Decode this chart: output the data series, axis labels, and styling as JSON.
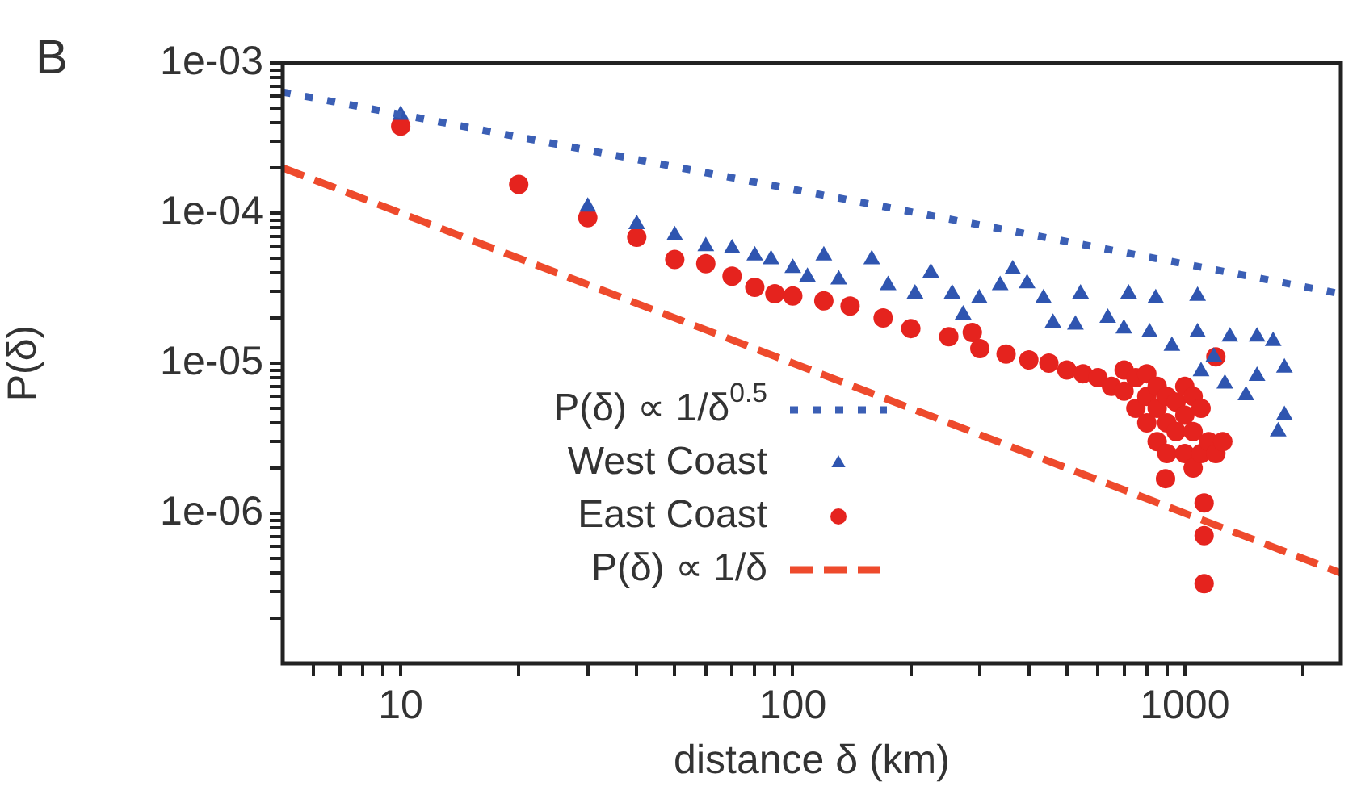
{
  "chart_data": {
    "type": "scatter",
    "title": "B",
    "xlabel": "distance δ (km)",
    "ylabel": "P(δ)",
    "log": "xy",
    "grid": false,
    "legend": "bottom left",
    "xlim": [
      5,
      2500
    ],
    "ylim": [
      1e-07,
      0.001
    ],
    "xticks": [
      {
        "value": 6,
        "label": null
      },
      {
        "value": 7,
        "label": null
      },
      {
        "value": 8,
        "label": null
      },
      {
        "value": 9,
        "label": null
      },
      10,
      {
        "value": 20,
        "label": null
      },
      {
        "value": 30,
        "label": null
      },
      {
        "value": 40,
        "label": null
      },
      {
        "value": 50,
        "label": null
      },
      {
        "value": 60,
        "label": null
      },
      {
        "value": 70,
        "label": null
      },
      {
        "value": 80,
        "label": null
      },
      {
        "value": 90,
        "label": null
      },
      100,
      {
        "value": 200,
        "label": null
      },
      {
        "value": 300,
        "label": null
      },
      {
        "value": 400,
        "label": null
      },
      {
        "value": 500,
        "label": null
      },
      {
        "value": 600,
        "label": null
      },
      {
        "value": 700,
        "label": null
      },
      {
        "value": 800,
        "label": null
      },
      {
        "value": 900,
        "label": null
      },
      1000,
      {
        "value": 2000,
        "label": null
      }
    ],
    "yticks": [
      {
        "value": 2e-07,
        "label": null
      },
      {
        "value": 3e-07,
        "label": null
      },
      {
        "value": 4e-07,
        "label": null
      },
      {
        "value": 5e-07,
        "label": null
      },
      {
        "value": 6e-07,
        "label": null
      },
      {
        "value": 7e-07,
        "label": null
      },
      {
        "value": 8e-07,
        "label": null
      },
      {
        "value": 9e-07,
        "label": null
      },
      {
        "value": 1e-06,
        "label": "1e-06"
      },
      {
        "value": 2e-06,
        "label": null
      },
      {
        "value": 3e-06,
        "label": null
      },
      {
        "value": 4e-06,
        "label": null
      },
      {
        "value": 5e-06,
        "label": null
      },
      {
        "value": 6e-06,
        "label": null
      },
      {
        "value": 7e-06,
        "label": null
      },
      {
        "value": 8e-06,
        "label": null
      },
      {
        "value": 9e-06,
        "label": null
      },
      {
        "value": 1e-05,
        "label": "1e-05"
      },
      {
        "value": 2e-05,
        "label": null
      },
      {
        "value": 3e-05,
        "label": null
      },
      {
        "value": 4e-05,
        "label": null
      },
      {
        "value": 5e-05,
        "label": null
      },
      {
        "value": 6e-05,
        "label": null
      },
      {
        "value": 7e-05,
        "label": null
      },
      {
        "value": 8e-05,
        "label": null
      },
      {
        "value": 9e-05,
        "label": null
      },
      {
        "value": 0.0001,
        "label": "1e-04"
      },
      {
        "value": 0.0002,
        "label": null
      },
      {
        "value": 0.0003,
        "label": null
      },
      {
        "value": 0.0004,
        "label": null
      },
      {
        "value": 0.0005,
        "label": null
      },
      {
        "value": 0.0006,
        "label": null
      },
      {
        "value": 0.0007,
        "label": null
      },
      {
        "value": 0.0008,
        "label": null
      },
      {
        "value": 0.0009,
        "label": null
      },
      {
        "value": 0.001,
        "label": "1e-03"
      }
    ],
    "series": [
      {
        "name": "P(δ) ∝ 1/δ$^{0.5}$",
        "type": "line",
        "line_style": "dotted",
        "marker": "none",
        "color": "#3b5fb5",
        "x": [
          5,
          2500
        ],
        "values": [
          0.00064,
          2.9e-05
        ]
      },
      {
        "name": "West Coast",
        "marker": "triangle",
        "color": "#2f55b0",
        "x": [
          10,
          30,
          40,
          50,
          60,
          70,
          80,
          88,
          100,
          109,
          120,
          131,
          159,
          175,
          205,
          225,
          255,
          272,
          299,
          338,
          364,
          396,
          436,
          461,
          526,
          542,
          636,
          699,
          719,
          813,
          843,
          927,
          1078,
          1078,
          1100,
          1186,
          1265,
          1303,
          1432,
          1528,
          1528,
          1680,
          1730,
          1795,
          1795
        ],
        "values": [
          0.00045,
          0.00011,
          8.4e-05,
          7.1e-05,
          6e-05,
          5.8e-05,
          5.2e-05,
          4.9e-05,
          4.3e-05,
          3.75e-05,
          5.2e-05,
          3.6e-05,
          4.9e-05,
          3.3e-05,
          2.9e-05,
          4e-05,
          2.9e-05,
          2.1e-05,
          2.7e-05,
          3.3e-05,
          4.2e-05,
          3.4e-05,
          2.7e-05,
          1.85e-05,
          1.8e-05,
          2.9e-05,
          2e-05,
          1.7e-05,
          2.9e-05,
          1.6e-05,
          2.7e-05,
          1.3e-05,
          2.8e-05,
          1.6e-05,
          8.8e-06,
          1.1e-05,
          7.3e-06,
          1.5e-05,
          6.1e-06,
          1.5e-05,
          8.2e-06,
          1.4e-05,
          3.5e-06,
          9.3e-06,
          4.5e-06
        ]
      },
      {
        "name": "East Coast",
        "marker": "circle",
        "color": "#e5231e",
        "x": [
          10,
          20,
          30,
          40,
          50,
          60,
          70,
          80,
          90,
          100,
          120,
          140,
          170,
          200,
          250,
          287,
          300,
          350,
          400,
          450,
          500,
          550,
          600,
          650,
          700,
          700,
          750,
          750,
          800,
          800,
          800,
          850,
          850,
          850,
          893,
          900,
          900,
          900,
          950,
          950,
          1000,
          1000,
          1000,
          1050,
          1050,
          1050,
          1100,
          1100,
          1120,
          1120,
          1120,
          1150,
          1200,
          1200,
          1250
        ],
        "values": [
          0.00038,
          0.000155,
          9.3e-05,
          6.9e-05,
          4.9e-05,
          4.6e-05,
          3.8e-05,
          3.2e-05,
          2.9e-05,
          2.8e-05,
          2.6e-05,
          2.4e-05,
          2e-05,
          1.7e-05,
          1.5e-05,
          1.6e-05,
          1.25e-05,
          1.15e-05,
          1.05e-05,
          1e-05,
          9e-06,
          8.5e-06,
          8e-06,
          7e-06,
          6.5e-06,
          9e-06,
          5e-06,
          8e-06,
          4e-06,
          6e-06,
          8.5e-06,
          3e-06,
          5e-06,
          7e-06,
          1.7e-06,
          2.5e-06,
          4e-06,
          6e-06,
          3.5e-06,
          5.5e-06,
          2.5e-06,
          4.5e-06,
          7e-06,
          2e-06,
          3.5e-06,
          6e-06,
          2.5e-06,
          5e-06,
          1.17e-06,
          7.1e-07,
          3.4e-07,
          3e-06,
          2.5e-06,
          1.1e-05,
          3e-06
        ]
      },
      {
        "name": "P(δ) ∝ 1/δ",
        "type": "line",
        "line_style": "dashed",
        "marker": "none",
        "color": "#ee4a2c",
        "x": [
          5,
          2500
        ],
        "values": [
          0.0002,
          4e-07
        ]
      }
    ]
  }
}
